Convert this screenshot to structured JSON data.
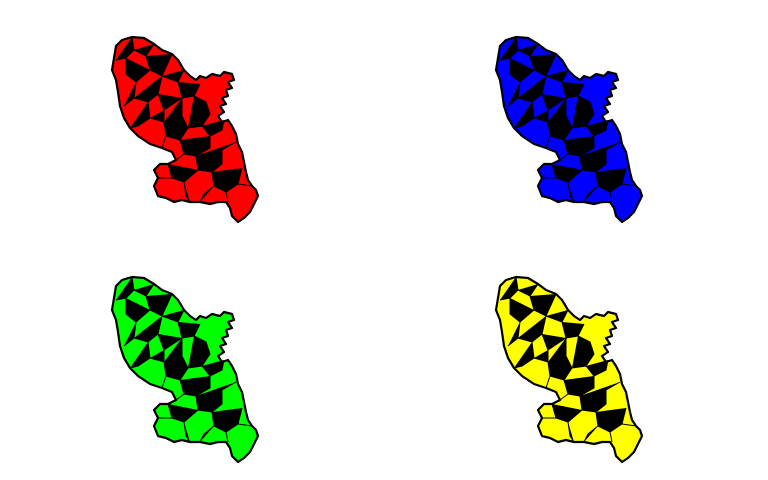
{
  "figure": {
    "panels": [
      {
        "id": "top-left",
        "fill_color": "#ff0000"
      },
      {
        "id": "top-right",
        "fill_color": "#0000ff"
      },
      {
        "id": "bottom-left",
        "fill_color": "#00ff00"
      },
      {
        "id": "bottom-right",
        "fill_color": "#ffff00"
      }
    ],
    "stroke_color": "#000000",
    "background_color": "#ffffff"
  }
}
